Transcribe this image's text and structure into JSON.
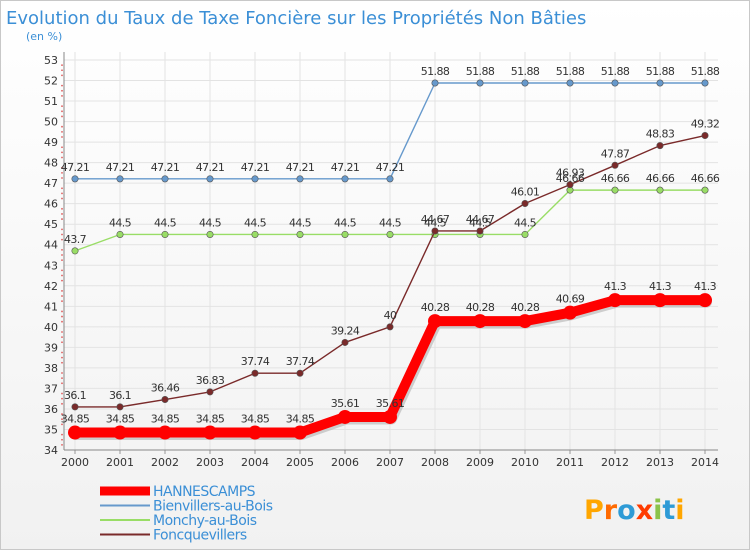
{
  "chart_data": {
    "type": "line",
    "title": "Evolution du Taux de Taxe Foncière sur les Propriétés Non Bâties",
    "ylabel": "(en %)",
    "xlabel": "",
    "categories": [
      "2000",
      "2001",
      "2002",
      "2003",
      "2004",
      "2005",
      "2006",
      "2007",
      "2008",
      "2009",
      "2010",
      "2011",
      "2012",
      "2013",
      "2014"
    ],
    "y_ticks": [
      "34",
      "35",
      "36",
      "37",
      "38",
      "39",
      "40",
      "41",
      "42",
      "43",
      "44",
      "45",
      "46",
      "47",
      "48",
      "49",
      "50",
      "51",
      "52",
      "53"
    ],
    "ylim": [
      34,
      53
    ],
    "grid": true,
    "legend_position": "bottom-left",
    "series": [
      {
        "name": "HANNESCAMPS",
        "color": "#ff0000",
        "values": [
          34.85,
          34.85,
          34.85,
          34.85,
          34.85,
          34.85,
          35.61,
          35.61,
          40.28,
          40.28,
          40.28,
          40.69,
          41.3,
          41.3,
          41.3
        ],
        "labels": [
          "34.85",
          "34.85",
          "34.85",
          "34.85",
          "34.85",
          "34.85",
          "35.61",
          "35.61",
          "40.28",
          "40.28",
          "40.28",
          "40.69",
          "41.3",
          "41.3",
          "41.3"
        ]
      },
      {
        "name": "Bienvillers-au-Bois",
        "color": "#6699cc",
        "values": [
          47.21,
          47.21,
          47.21,
          47.21,
          47.21,
          47.21,
          47.21,
          47.21,
          51.88,
          51.88,
          51.88,
          51.88,
          51.88,
          51.88,
          51.88
        ],
        "labels": [
          "47.21",
          "47.21",
          "47.21",
          "47.21",
          "47.21",
          "47.21",
          "47.21",
          "47.21",
          "51.88",
          "51.88",
          "51.88",
          "51.88",
          "51.88",
          "51.88",
          "51.88"
        ]
      },
      {
        "name": "Monchy-au-Bois",
        "color": "#99dd66",
        "values": [
          43.7,
          44.5,
          44.5,
          44.5,
          44.5,
          44.5,
          44.5,
          44.5,
          44.5,
          44.5,
          44.5,
          46.66,
          46.66,
          46.66,
          46.66
        ],
        "labels": [
          "43.7",
          "44.5",
          "44.5",
          "44.5",
          "44.5",
          "44.5",
          "44.5",
          "44.5",
          "44.5",
          "44.5",
          "44.5",
          "46.66",
          "46.66",
          "46.66",
          "46.66"
        ]
      },
      {
        "name": "Foncquevillers",
        "color": "#7a2a2a",
        "values": [
          36.1,
          36.1,
          36.46,
          36.83,
          37.74,
          37.74,
          39.24,
          40,
          44.67,
          44.67,
          46.01,
          46.93,
          47.87,
          48.83,
          49.32
        ],
        "labels": [
          "36.1",
          "36.1",
          "36.46",
          "36.83",
          "37.74",
          "37.74",
          "39.24",
          "40",
          "44.67",
          "44.67",
          "46.01",
          "46.93",
          "47.87",
          "48.83",
          "49.32"
        ]
      }
    ]
  },
  "branding": {
    "logo_text": "Proxiti"
  }
}
